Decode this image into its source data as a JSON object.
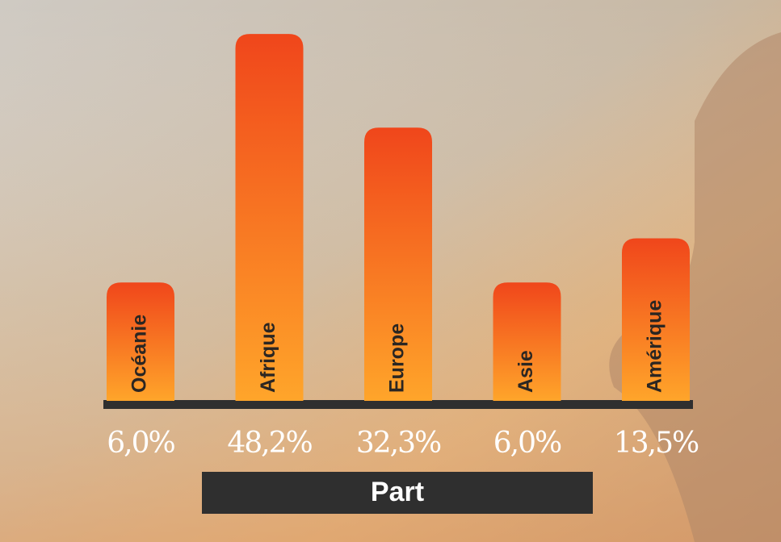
{
  "chart_data": {
    "type": "bar",
    "categories": [
      "Océanie",
      "Afrique",
      "Europe",
      "Asie",
      "Amérique"
    ],
    "values": [
      6.0,
      48.2,
      32.3,
      6.0,
      13.5
    ],
    "value_labels": [
      "6,0%",
      "48,2%",
      "32,3%",
      "6,0%",
      "13,5%"
    ],
    "x_label": "Part",
    "color_top": "#f0461b",
    "color_bottom": "#ffa52a"
  }
}
